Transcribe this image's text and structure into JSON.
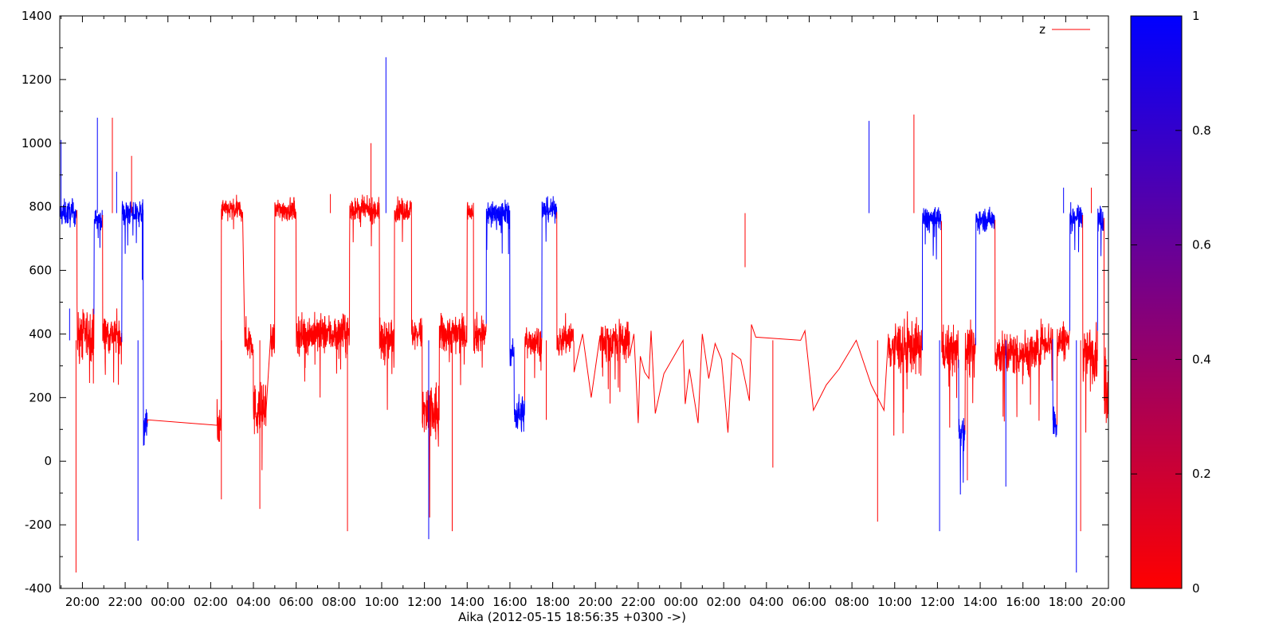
{
  "chart_data": {
    "type": "line",
    "xlabel": "Aika (2012-05-15 18:56:35 +0300 ->)",
    "x_tick_labels": [
      "20:00",
      "22:00",
      "00:00",
      "02:00",
      "04:00",
      "06:00",
      "08:00",
      "10:00",
      "12:00",
      "14:00",
      "16:00",
      "18:00",
      "20:00",
      "22:00",
      "00:00",
      "02:00",
      "04:00",
      "06:00",
      "08:00",
      "10:00",
      "12:00",
      "14:00",
      "16:00",
      "18:00",
      "20:00"
    ],
    "x_range_hours": [
      -1.06,
      48.0
    ],
    "y_ticks": [
      1400,
      1200,
      1000,
      800,
      600,
      400,
      200,
      0,
      -200,
      -400
    ],
    "ylim": [
      -400,
      1400
    ],
    "colorbar": {
      "ticks": [
        "1",
        "0.8",
        "0.6",
        "0.4",
        "0.2",
        "0"
      ],
      "range": [
        0,
        1
      ],
      "low_color": "#ff0000",
      "high_color": "#0000ff"
    },
    "legend": {
      "label": "z",
      "color": "#ff0000",
      "position": "top-right"
    },
    "grid": false,
    "series": [
      {
        "segments": [
          {
            "x0": -1.06,
            "x1": -0.25,
            "level": "high",
            "mean": 780,
            "noise": 40,
            "c": 1
          },
          {
            "x0": -0.25,
            "x1": 0.55,
            "level": "mid",
            "mean": 400,
            "noise": 75,
            "c": 0
          },
          {
            "x0": 0.55,
            "x1": 0.95,
            "level": "high",
            "mean": 760,
            "noise": 30,
            "c": 1
          },
          {
            "x0": 0.95,
            "x1": 1.85,
            "level": "mid",
            "mean": 400,
            "noise": 60,
            "c": 0
          },
          {
            "x0": 1.85,
            "x1": 2.85,
            "level": "high",
            "mean": 780,
            "noise": 40,
            "c": 1
          },
          {
            "x0": 2.85,
            "x1": 3.05,
            "level": "low",
            "mean": 110,
            "noise": 60,
            "c": 1
          },
          {
            "x0": 6.3,
            "x1": 6.5,
            "level": "low",
            "mean": 100,
            "noise": 60,
            "c": 0
          },
          {
            "x0": 6.5,
            "x1": 7.5,
            "level": "high",
            "mean": 790,
            "noise": 35,
            "c": 0
          },
          {
            "x0": 7.6,
            "x1": 8.0,
            "level": "mid",
            "mean": 380,
            "noise": 60,
            "c": 0
          },
          {
            "x0": 8.0,
            "x1": 8.6,
            "level": "low",
            "mean": 160,
            "noise": 80,
            "c": 0
          },
          {
            "x0": 8.8,
            "x1": 9.0,
            "level": "mid",
            "mean": 380,
            "noise": 50,
            "c": 0
          },
          {
            "x0": 9.0,
            "x1": 10.0,
            "level": "high",
            "mean": 790,
            "noise": 35,
            "c": 0
          },
          {
            "x0": 10.0,
            "x1": 11.5,
            "level": "mid",
            "mean": 400,
            "noise": 60,
            "c": 0
          },
          {
            "x0": 11.5,
            "x1": 12.5,
            "level": "mid",
            "mean": 400,
            "noise": 60,
            "c": 0
          },
          {
            "x0": 12.5,
            "x1": 13.9,
            "level": "high",
            "mean": 790,
            "noise": 35,
            "c": 0
          },
          {
            "x0": 13.9,
            "x1": 14.6,
            "level": "mid",
            "mean": 380,
            "noise": 70,
            "c": 0
          },
          {
            "x0": 14.6,
            "x1": 15.4,
            "level": "high",
            "mean": 790,
            "noise": 35,
            "c": 0
          },
          {
            "x0": 15.4,
            "x1": 15.9,
            "level": "mid",
            "mean": 400,
            "noise": 50,
            "c": 0
          },
          {
            "x0": 15.9,
            "x1": 16.7,
            "level": "low",
            "mean": 150,
            "noise": 100,
            "c": 0
          },
          {
            "x0": 16.7,
            "x1": 18.0,
            "level": "mid",
            "mean": 400,
            "noise": 60,
            "c": 0
          },
          {
            "x0": 18.0,
            "x1": 18.3,
            "level": "high",
            "mean": 790,
            "noise": 30,
            "c": 0
          },
          {
            "x0": 18.3,
            "x1": 18.9,
            "level": "mid",
            "mean": 400,
            "noise": 60,
            "c": 0
          },
          {
            "x0": 18.9,
            "x1": 20.0,
            "level": "high",
            "mean": 780,
            "noise": 40,
            "c": 1
          },
          {
            "x0": 20.0,
            "x1": 20.2,
            "level": "mid",
            "mean": 340,
            "noise": 40,
            "c": 1
          },
          {
            "x0": 20.2,
            "x1": 20.7,
            "level": "low",
            "mean": 150,
            "noise": 60,
            "c": 1
          },
          {
            "x0": 20.7,
            "x1": 21.5,
            "level": "mid",
            "mean": 380,
            "noise": 50,
            "c": 0
          },
          {
            "x0": 21.5,
            "x1": 22.2,
            "level": "high",
            "mean": 790,
            "noise": 35,
            "c": 1
          },
          {
            "x0": 22.2,
            "x1": 22.5,
            "level": "mid",
            "mean": 380,
            "noise": 40,
            "c": 0
          },
          {
            "x0": 22.5,
            "x1": 23.0,
            "level": "mid",
            "mean": 390,
            "noise": 60,
            "c": 0
          },
          {
            "x0": 24.2,
            "x1": 25.6,
            "level": "mid",
            "mean": 380,
            "noise": 60,
            "c": 0
          },
          {
            "x0": 37.7,
            "x1": 39.3,
            "level": "mid",
            "mean": 360,
            "noise": 80,
            "c": 0
          },
          {
            "x0": 39.3,
            "x1": 40.2,
            "level": "high",
            "mean": 760,
            "noise": 40,
            "c": 1
          },
          {
            "x0": 40.2,
            "x1": 41.0,
            "level": "mid",
            "mean": 350,
            "noise": 70,
            "c": 0
          },
          {
            "x0": 41.0,
            "x1": 41.3,
            "level": "low",
            "mean": 100,
            "noise": 60,
            "c": 1
          },
          {
            "x0": 41.3,
            "x1": 41.8,
            "level": "mid",
            "mean": 350,
            "noise": 70,
            "c": 0
          },
          {
            "x0": 41.8,
            "x1": 42.7,
            "level": "high",
            "mean": 760,
            "noise": 35,
            "c": 1
          },
          {
            "x0": 42.7,
            "x1": 43.5,
            "level": "mid",
            "mean": 340,
            "noise": 70,
            "c": 0
          },
          {
            "x0": 43.5,
            "x1": 44.8,
            "level": "mid",
            "mean": 340,
            "noise": 70,
            "c": 0
          },
          {
            "x0": 44.8,
            "x1": 45.4,
            "level": "mid",
            "mean": 380,
            "noise": 60,
            "c": 0
          },
          {
            "x0": 45.4,
            "x1": 45.6,
            "level": "low",
            "mean": 120,
            "noise": 60,
            "c": 1
          },
          {
            "x0": 45.6,
            "x1": 46.2,
            "level": "mid",
            "mean": 380,
            "noise": 60,
            "c": 0
          },
          {
            "x0": 46.2,
            "x1": 46.8,
            "level": "high",
            "mean": 770,
            "noise": 40,
            "c": 1
          },
          {
            "x0": 46.8,
            "x1": 47.5,
            "level": "mid",
            "mean": 340,
            "noise": 80,
            "c": 0
          },
          {
            "x0": 47.5,
            "x1": 47.8,
            "level": "high",
            "mean": 760,
            "noise": 40,
            "c": 1
          },
          {
            "x0": 47.8,
            "x1": 48.0,
            "level": "mid",
            "mean": 250,
            "noise": 150,
            "c": 0
          }
        ],
        "sparse_points": [
          [
            3.05,
            130,
            0
          ],
          [
            6.3,
            195,
            0
          ],
          [
            23.0,
            280,
            0
          ],
          [
            23.4,
            400,
            0
          ],
          [
            23.8,
            200,
            0
          ],
          [
            24.2,
            380,
            0
          ],
          [
            25.6,
            330,
            0
          ],
          [
            25.8,
            400,
            0
          ],
          [
            26.0,
            120,
            0
          ],
          [
            26.1,
            330,
            0
          ],
          [
            26.3,
            280,
            0
          ],
          [
            26.5,
            260,
            0
          ],
          [
            26.6,
            410,
            0
          ],
          [
            26.8,
            150,
            0
          ],
          [
            27.2,
            275,
            0
          ],
          [
            28.1,
            380,
            0
          ],
          [
            28.2,
            180,
            0
          ],
          [
            28.4,
            290,
            0
          ],
          [
            28.8,
            120,
            0
          ],
          [
            29.0,
            400,
            0
          ],
          [
            29.3,
            260,
            0
          ],
          [
            29.6,
            370,
            0
          ],
          [
            29.9,
            320,
            0
          ],
          [
            30.2,
            90,
            0
          ],
          [
            30.4,
            340,
            0
          ],
          [
            30.8,
            320,
            0
          ],
          [
            31.2,
            190,
            0
          ],
          [
            31.3,
            430,
            0
          ],
          [
            31.5,
            390,
            0
          ],
          [
            33.6,
            380,
            0
          ],
          [
            33.8,
            410,
            0
          ],
          [
            34.2,
            160,
            0
          ],
          [
            34.8,
            240,
            0
          ],
          [
            35.4,
            290,
            0
          ],
          [
            36.2,
            380,
            0
          ],
          [
            36.9,
            240,
            0
          ],
          [
            37.5,
            160,
            0
          ],
          [
            37.7,
            400,
            0
          ]
        ],
        "spikes": [
          [
            -1.0,
            1010,
            1
          ],
          [
            -0.6,
            480,
            1
          ],
          [
            -0.3,
            -350,
            0
          ],
          [
            0.7,
            1080,
            1
          ],
          [
            1.4,
            1080,
            0
          ],
          [
            1.6,
            910,
            1
          ],
          [
            2.3,
            960,
            0
          ],
          [
            2.6,
            -250,
            1
          ],
          [
            2.8,
            570,
            1
          ],
          [
            6.5,
            -120,
            0
          ],
          [
            8.3,
            -150,
            0
          ],
          [
            9.9,
            830,
            0
          ],
          [
            11.6,
            840,
            0
          ],
          [
            12.4,
            -220,
            0
          ],
          [
            13.5,
            1000,
            0
          ],
          [
            14.2,
            1270,
            1
          ],
          [
            15.2,
            820,
            0
          ],
          [
            16.2,
            -245,
            1
          ],
          [
            17.3,
            -220,
            0
          ],
          [
            21.7,
            130,
            0
          ],
          [
            31.0,
            610,
            0
          ],
          [
            32.3,
            -20,
            0
          ],
          [
            36.8,
            1070,
            1
          ],
          [
            37.2,
            -190,
            0
          ],
          [
            38.9,
            1090,
            0
          ],
          [
            40.1,
            -220,
            1
          ],
          [
            41.4,
            -60,
            0
          ],
          [
            43.2,
            -80,
            1
          ],
          [
            45.9,
            860,
            1
          ],
          [
            46.5,
            -350,
            1
          ],
          [
            46.7,
            -220,
            0
          ],
          [
            47.2,
            860,
            0
          ],
          [
            48.0,
            -190,
            1
          ]
        ]
      }
    ]
  }
}
